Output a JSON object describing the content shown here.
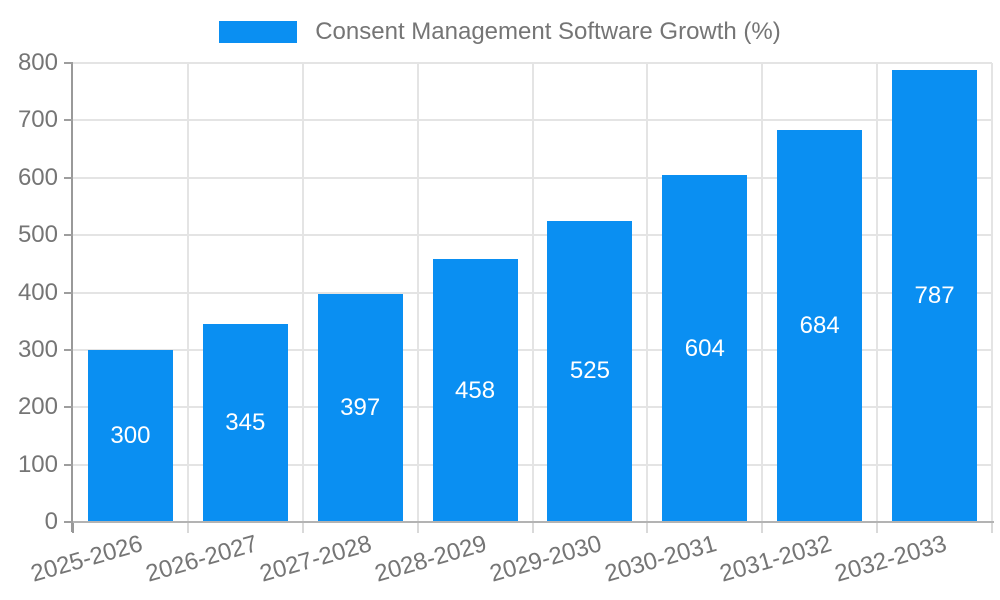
{
  "chart_data": {
    "type": "bar",
    "title": "Consent Management Software Growth (%)",
    "categories": [
      "2025-2026",
      "2026-2027",
      "2027-2028",
      "2028-2029",
      "2029-2030",
      "2030-2031",
      "2031-2032",
      "2032-2033"
    ],
    "values": [
      300,
      345,
      397,
      458,
      525,
      604,
      684,
      787
    ],
    "xlabel": "",
    "ylabel": "",
    "ylim": [
      0,
      800
    ],
    "yticks": [
      0,
      100,
      200,
      300,
      400,
      500,
      600,
      700,
      800
    ],
    "grid": true,
    "legend": {
      "position": "top",
      "label": "Consent Management Software Growth (%)"
    },
    "colors": {
      "bar": "#0a8ff2",
      "bar_label": "#ffffff",
      "tick_label": "#757575",
      "grid": "#e4e4e4",
      "x_tick": "#d9d9d9",
      "axis_y": "#999999",
      "axis_x": "#b3b3b3",
      "y_tick": "#9e9e9e",
      "background": "#ffffff"
    }
  }
}
